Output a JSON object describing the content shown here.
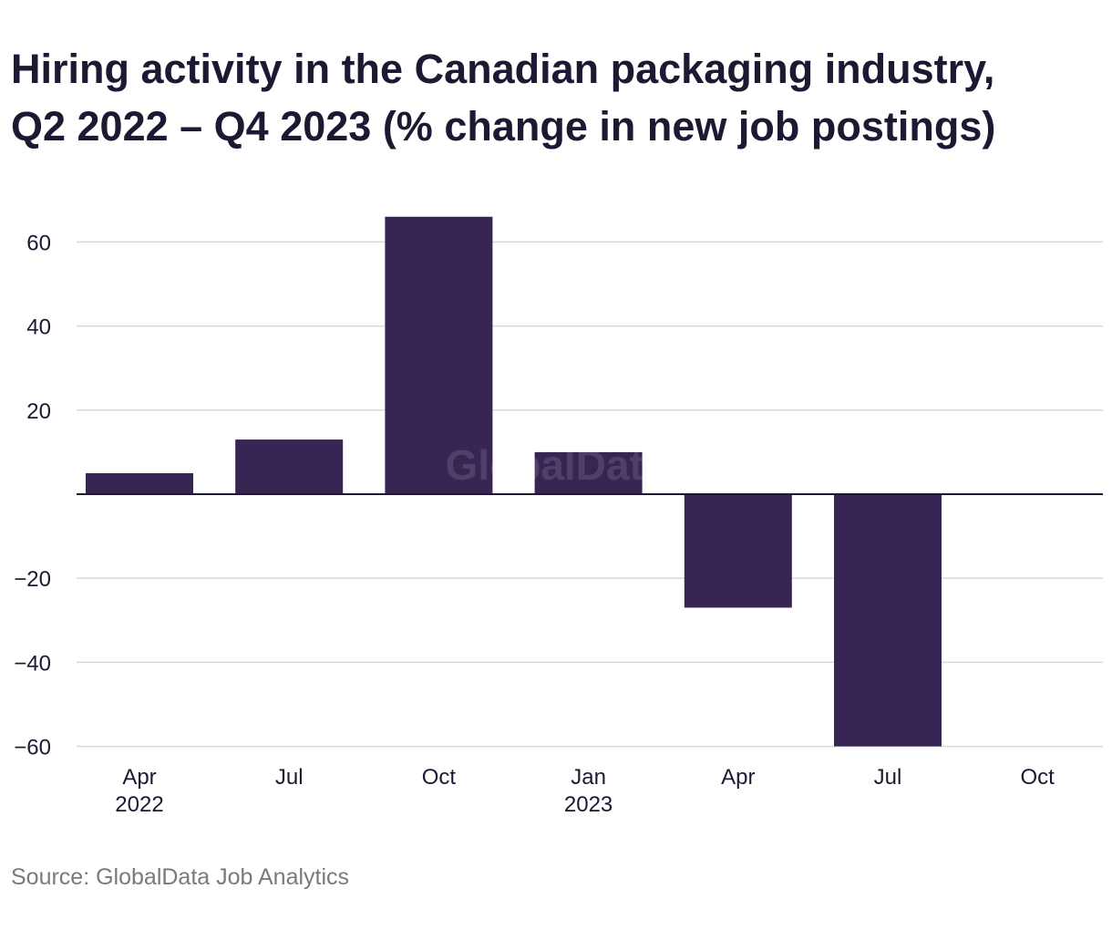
{
  "title_lines": [
    "Hiring activity in the Canadian packaging industry,",
    "Q2 2022 – Q4 2023 (% change in new job postings)"
  ],
  "source": "Source: GlobalData Job Analytics",
  "watermark": "GlobalData",
  "colors": {
    "bar": "#372653",
    "grid": "#d9d9d9",
    "zero_line": "#1c1a33",
    "text": "#1c1a33",
    "source": "#7a7a7a"
  },
  "chart_data": {
    "type": "bar",
    "title": "Hiring activity in the Canadian packaging industry, Q2 2022 – Q4 2023 (% change in new job postings)",
    "categories": [
      "Apr 2022",
      "Jul",
      "Oct",
      "Jan 2023",
      "Apr",
      "Jul",
      "Oct"
    ],
    "x_tick_labels": [
      [
        "Apr",
        "2022"
      ],
      [
        "Jul"
      ],
      [
        "Oct"
      ],
      [
        "Jan",
        "2023"
      ],
      [
        "Apr"
      ],
      [
        "Jul"
      ],
      [
        "Oct"
      ]
    ],
    "values": [
      5,
      13,
      66,
      10,
      -27,
      -60,
      0
    ],
    "ylim": [
      -60,
      66
    ],
    "y_ticks": [
      60,
      40,
      20,
      -20,
      -40,
      -60
    ],
    "y_tick_labels": [
      "60",
      "40",
      "20",
      "−20",
      "−40",
      "−60"
    ],
    "xlabel": "",
    "ylabel": "",
    "grid": true,
    "legend": "none"
  }
}
